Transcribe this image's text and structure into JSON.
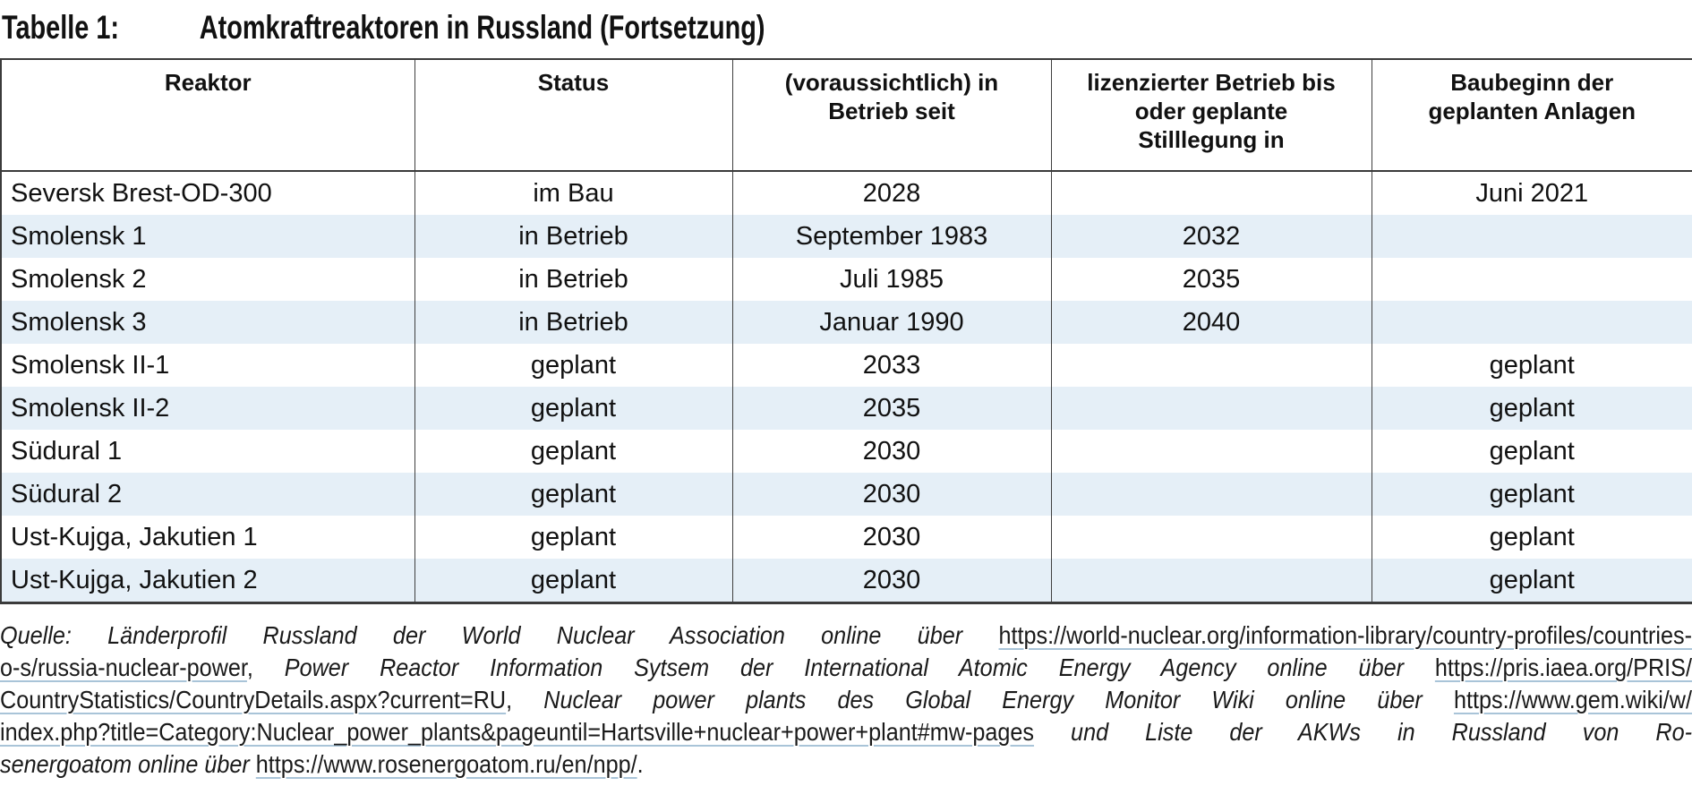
{
  "title": {
    "label": "Tabelle 1:",
    "text": "Atomkraftreaktoren in Russland (Fortsetzung)"
  },
  "colors": {
    "row_alt_background": "#e5eff7",
    "table_border": "#3b3b3b",
    "link_underline": "#a9c4d8",
    "text": "#111111"
  },
  "table": {
    "columns": [
      "Reaktor",
      "Status",
      "(voraussichtlich) in Betrieb seit",
      "lizenzierter Betrieb bis oder geplante Stilllegung in",
      "Baubeginn der geplanten Anlagen"
    ],
    "rows": [
      {
        "cells": [
          "Seversk Brest-OD-300",
          "im Bau",
          "2028",
          "",
          "Juni 2021"
        ]
      },
      {
        "cells": [
          "Smolensk 1",
          "in Betrieb",
          "September 1983",
          "2032",
          ""
        ]
      },
      {
        "cells": [
          "Smolensk 2",
          "in Betrieb",
          "Juli 1985",
          "2035",
          ""
        ]
      },
      {
        "cells": [
          "Smolensk 3",
          "in Betrieb",
          "Januar 1990",
          "2040",
          ""
        ]
      },
      {
        "cells": [
          "Smolensk II-1",
          "geplant",
          "2033",
          "",
          "geplant"
        ]
      },
      {
        "cells": [
          "Smolensk II-2",
          "geplant",
          "2035",
          "",
          "geplant"
        ]
      },
      {
        "cells": [
          "Südural 1",
          "geplant",
          "2030",
          "",
          "geplant"
        ]
      },
      {
        "cells": [
          "Südural 2",
          "geplant",
          "2030",
          "",
          "geplant"
        ]
      },
      {
        "cells": [
          "Ust-Kujga, Jakutien 1",
          "geplant",
          "2030",
          "",
          "geplant"
        ]
      },
      {
        "cells": [
          "Ust-Kujga, Jakutien 2",
          "geplant",
          "2030",
          "",
          "geplant"
        ]
      }
    ]
  },
  "source": {
    "lines": [
      {
        "segments": [
          {
            "type": "italic",
            "text": "Quelle: Länderprofil Russland der World Nuclear Association online über "
          },
          {
            "type": "link",
            "text": "https://world-nuclear.org/information-library/country-profiles/countries-"
          }
        ]
      },
      {
        "segments": [
          {
            "type": "link",
            "text": "o-s/russia-nuclear-power"
          },
          {
            "type": "plain",
            "text": ", "
          },
          {
            "type": "italic",
            "text": "Power Reactor Information Sytsem der International Atomic Energy Agency online über "
          },
          {
            "type": "link",
            "text": "https://pris.iaea.org/PRIS/"
          }
        ]
      },
      {
        "segments": [
          {
            "type": "link",
            "text": "CountryStatistics/CountryDetails.aspx?current=RU"
          },
          {
            "type": "plain",
            "text": ", "
          },
          {
            "type": "italic",
            "text": "Nuclear power plants des Global Energy Monitor Wiki online über "
          },
          {
            "type": "link",
            "text": "https://www.gem.wiki/w/"
          }
        ]
      },
      {
        "segments": [
          {
            "type": "link",
            "text": "index.php?title=Category:Nuclear_power_plants&pageuntil=Hartsville+nuclear+power+plant#mw-pages"
          },
          {
            "type": "italic",
            "text": " und Liste der AKWs in Russland von Ro-"
          }
        ]
      },
      {
        "segments": [
          {
            "type": "italic",
            "text": "senergoatom online über "
          },
          {
            "type": "link",
            "text": "https://www.rosenergoatom.ru/en/npp/"
          },
          {
            "type": "plain",
            "text": "."
          }
        ]
      }
    ]
  }
}
